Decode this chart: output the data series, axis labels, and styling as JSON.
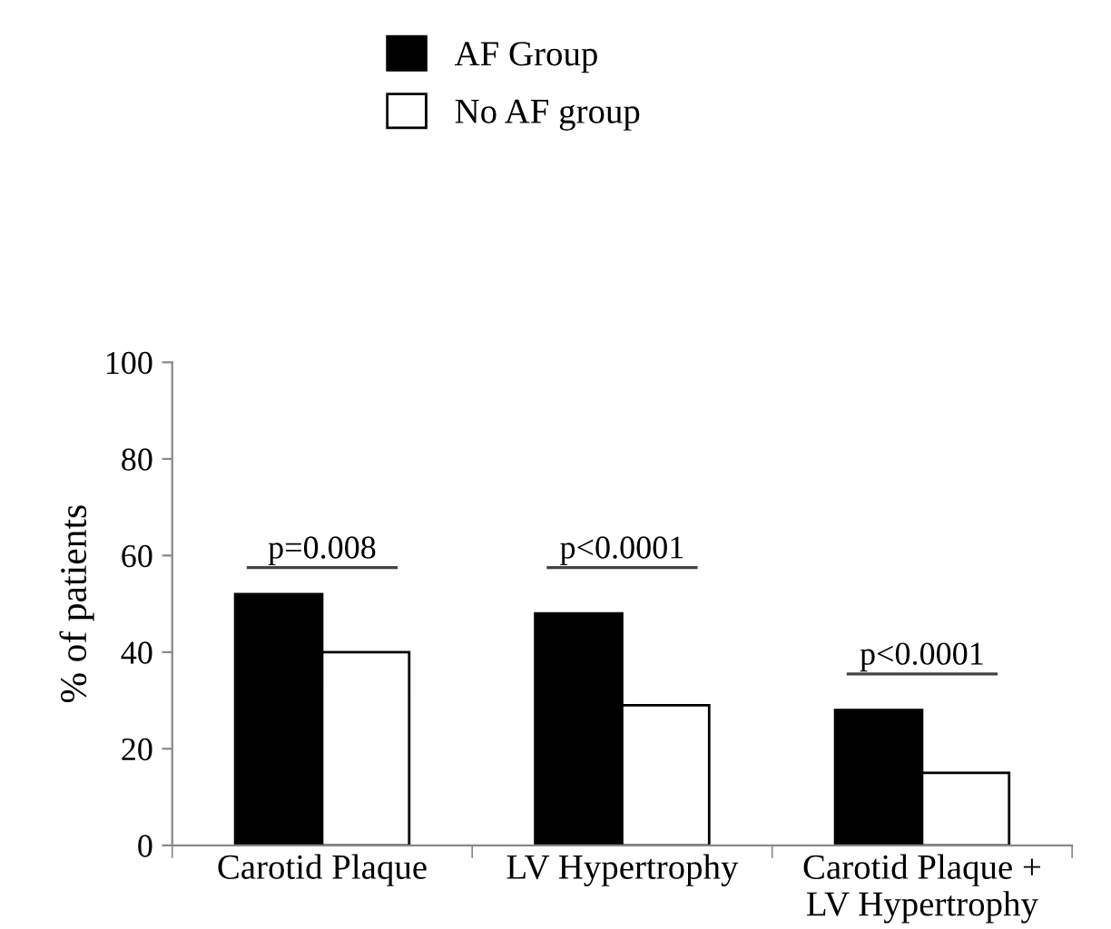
{
  "chart_data": {
    "type": "bar",
    "ylabel": "% of patients",
    "categories": [
      "Carotid Plaque",
      "LV Hypertrophy",
      "Carotid Plaque +\nLV Hypertrophy"
    ],
    "series": [
      {
        "name": "AF Group",
        "color": "#000000",
        "values": [
          52,
          48,
          28
        ]
      },
      {
        "name": "No AF group",
        "color": "#ffffff",
        "values": [
          40,
          29,
          15
        ]
      }
    ],
    "ylim": [
      0,
      100
    ],
    "yticks": [
      0,
      20,
      40,
      60,
      80,
      100
    ],
    "grid": false,
    "legend": "top",
    "annotations": [
      "p=0.008",
      "p<0.0001",
      "p<0.0001"
    ]
  }
}
